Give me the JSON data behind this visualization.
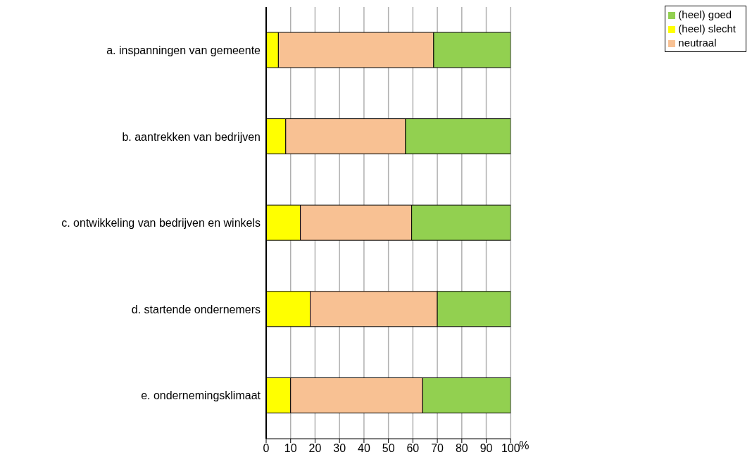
{
  "chart_data": {
    "type": "bar",
    "orientation": "horizontal",
    "stacked": true,
    "categories": [
      "a. inspanningen van gemeente",
      "b. aantrekken van bedrijven",
      "c. ontwikkeling van bedrijven en winkels",
      "d. startende ondernemers",
      "e. ondernemingsklimaat"
    ],
    "series": [
      {
        "name": "(heel) slecht",
        "color": "#ffff00",
        "values": [
          5,
          8,
          14,
          18,
          10
        ]
      },
      {
        "name": "neutraal",
        "color": "#f8c193",
        "values": [
          63.5,
          49,
          45.5,
          52,
          54
        ]
      },
      {
        "name": "(heel) goed",
        "color": "#92d050",
        "values": [
          31.5,
          43,
          40.5,
          30,
          36
        ]
      }
    ],
    "xlabel": "%",
    "xlim": [
      0,
      100
    ],
    "xticks": [
      0,
      10,
      20,
      30,
      40,
      50,
      60,
      70,
      80,
      90,
      100
    ],
    "grid": "x",
    "legend": "top right"
  }
}
